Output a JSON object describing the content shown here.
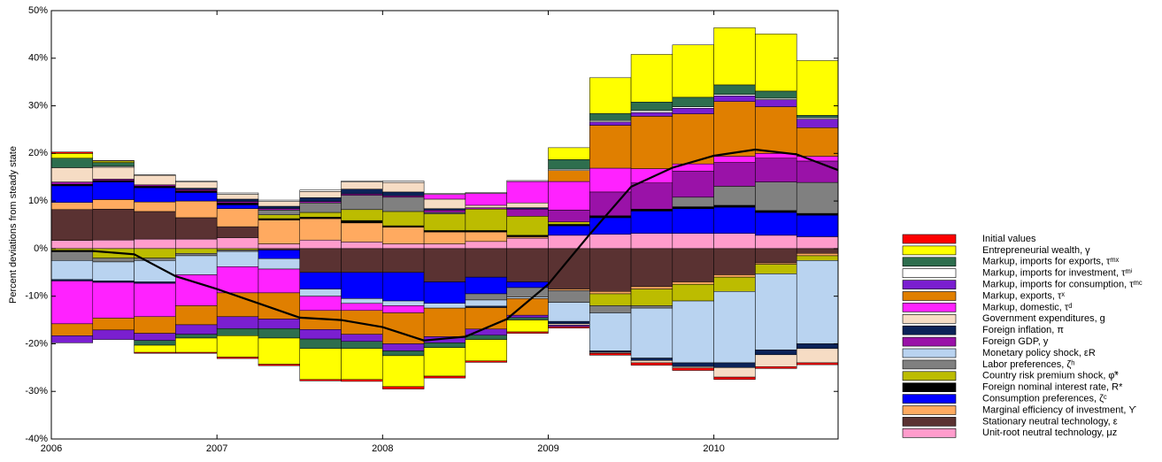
{
  "chart_data": {
    "type": "stacked_bar",
    "y_label": "Percent deviations from steady state",
    "x": [
      2006,
      2006.25,
      2006.5,
      2006.75,
      2007,
      2007.25,
      2007.5,
      2007.75,
      2008,
      2008.25,
      2008.5,
      2008.75,
      2009,
      2009.25,
      2009.5,
      2009.75,
      2010,
      2010.25,
      2010.5
    ],
    "xlim": [
      2006,
      2010.75
    ],
    "xticks": [
      2006,
      2007,
      2008,
      2009,
      2010
    ],
    "ylim": [
      -40,
      50
    ],
    "yticks": [
      {
        "value": -40,
        "label": "-40%"
      },
      {
        "value": -30,
        "label": "-30%"
      },
      {
        "value": -20,
        "label": "-20%"
      },
      {
        "value": -10,
        "label": "-10%"
      },
      {
        "value": 0,
        "label": "0%"
      },
      {
        "value": 10,
        "label": "10%"
      },
      {
        "value": 20,
        "label": "20%"
      },
      {
        "value": 30,
        "label": "30%"
      },
      {
        "value": 40,
        "label": "40%"
      },
      {
        "value": 50,
        "label": "50%"
      }
    ],
    "series": [
      {
        "name": "Initial values",
        "color": "#ff0000",
        "values": [
          0.3,
          0.1,
          -0.2,
          -0.2,
          -0.3,
          -0.3,
          -0.3,
          -0.4,
          -0.5,
          -0.4,
          -0.3,
          -0.3,
          -0.3,
          -0.4,
          -0.5,
          -0.5,
          -0.5,
          -0.4,
          -0.4
        ]
      },
      {
        "name": "Entrepreneurial wealth, γ",
        "color": "#ffff00",
        "values": [
          1,
          0.3,
          -1.5,
          -3,
          -4.5,
          -5.5,
          -6.5,
          -6.5,
          -6.5,
          -6,
          -4.5,
          -2.5,
          2.5,
          7.5,
          10,
          11,
          12,
          12,
          11.5
        ]
      },
      {
        "name": "Markup, imports for exports, τᵐˣ",
        "color": "#2e6e4e",
        "values": [
          2,
          0.8,
          -1,
          -0.8,
          -1.5,
          -2,
          -2,
          -1.5,
          -1,
          -1,
          -0.9,
          -0.5,
          2,
          1.5,
          1.8,
          2,
          2,
          1.5,
          0.5
        ]
      },
      {
        "name": "Markup, imports for investment, τᵐⁱ",
        "color": "#ffffff",
        "values": [
          0,
          0.2,
          0.1,
          0.2,
          0.3,
          0.3,
          0.3,
          0.2,
          0.3,
          0.2,
          0.2,
          0.2,
          0.3,
          0.3,
          0.4,
          0.3,
          0.3,
          0.3,
          0.3
        ]
      },
      {
        "name": "Markup, imports for consumption, τᵐᶜ",
        "color": "#7a1fd0",
        "values": [
          -1.5,
          -2,
          -1.5,
          -2,
          -2.5,
          -2,
          -2,
          -1.5,
          -1.5,
          -1.3,
          -1.3,
          -0.5,
          -0.3,
          0.7,
          0.8,
          1.2,
          1.2,
          1.5,
          1.8
        ]
      },
      {
        "name": "Markup, exports, τˣ",
        "color": "#e07f00",
        "values": [
          -2.5,
          -2.5,
          -3.5,
          -4,
          -5,
          -5.5,
          -4,
          -5,
          -6.5,
          -6,
          -4.5,
          -3.5,
          2.3,
          9,
          11,
          10.5,
          11.5,
          9.8,
          6
        ]
      },
      {
        "name": "Markup, domestic, τᵈ",
        "color": "#ff22ff",
        "values": [
          -9,
          -7.5,
          -7,
          -6.5,
          -5.5,
          -5,
          -3,
          -1.5,
          -1.5,
          1,
          2.5,
          4.5,
          6,
          5,
          3,
          1.5,
          1.3,
          1,
          1
        ]
      },
      {
        "name": "Government expenditures, g",
        "color": "#f6dcc4",
        "values": [
          3,
          2.5,
          2,
          1.3,
          1,
          1,
          1.3,
          1.5,
          2,
          2,
          0.5,
          1,
          -0.3,
          -0.2,
          -0.5,
          -0.3,
          -2,
          -2.5,
          -3
        ]
      },
      {
        "name": "Foreign inflation, π",
        "color": "#0c2358",
        "values": [
          -0.3,
          -0.3,
          -0.3,
          0.3,
          0.5,
          0.5,
          0.8,
          1,
          0.8,
          0.3,
          -0.3,
          0.3,
          -0.5,
          -0.3,
          -0.5,
          -0.8,
          -1,
          -1,
          -1
        ]
      },
      {
        "name": "Foreign GDP, y",
        "color": "#9a12a8",
        "values": [
          0.5,
          0.3,
          0.3,
          0.3,
          0.3,
          0.3,
          0.3,
          0.3,
          0.3,
          0.5,
          0.3,
          1.5,
          2.5,
          5,
          5.5,
          5.5,
          5,
          5,
          4.5
        ]
      },
      {
        "name": "Monetary policy shock, εR",
        "color": "#b9d3f0",
        "values": [
          -4,
          -4,
          -4.5,
          -4,
          -3.2,
          -2.2,
          -1.5,
          -1,
          -1,
          -1,
          -1.3,
          -0.3,
          -4,
          -8,
          -10.5,
          -13,
          -15,
          -16,
          -17.5
        ]
      },
      {
        "name": "Labor preferences, ζʰ",
        "color": "#808080",
        "values": [
          -2,
          -0.8,
          -0.5,
          -0.5,
          -0.3,
          1,
          2,
          3,
          3,
          0.3,
          -1.3,
          -2,
          -2.5,
          -1.5,
          -0.5,
          2,
          4,
          6,
          6.5
        ]
      },
      {
        "name": "Country risk premium shock, φ̃*",
        "color": "#bcbc00",
        "values": [
          -0.5,
          -2,
          -2,
          -1,
          -0.3,
          0.8,
          1,
          2.3,
          3,
          3.5,
          4.5,
          4,
          0.5,
          -2.5,
          -3.5,
          -3.5,
          -3,
          -2,
          -1
        ]
      },
      {
        "name": "Foreign nominal interest rate, R*",
        "color": "#000000",
        "values": [
          0.3,
          0.3,
          0.3,
          0.3,
          0.4,
          0.3,
          0.3,
          0.5,
          0.3,
          0.3,
          0.3,
          0.3,
          0.3,
          0.4,
          0.4,
          0.4,
          0.4,
          0.4,
          0.4
        ]
      },
      {
        "name": "Consumption preferences, ζᶜ",
        "color": "#0000ff",
        "values": [
          3.5,
          3.7,
          3,
          1.8,
          0.8,
          -1.8,
          -3.5,
          -5.5,
          -6,
          -4.5,
          -3.5,
          -1.2,
          2,
          3.5,
          4.7,
          5.2,
          5.5,
          4.8,
          4.5
        ]
      },
      {
        "name": "Marginal efficiency of investment, ϒ",
        "color": "#ffaa60",
        "values": [
          1.5,
          2,
          2,
          3.5,
          3.8,
          5,
          4.5,
          4,
          3.5,
          2.5,
          2,
          0.3,
          -0.3,
          -0.5,
          -0.5,
          -0.5,
          -0.5,
          -0.3,
          -0.5
        ]
      },
      {
        "name": "Stationary neutral technology, ε",
        "color": "#5a3232",
        "values": [
          6.5,
          6.5,
          5.8,
          4.5,
          2.3,
          -0.3,
          -5,
          -5,
          -5,
          -7,
          -6,
          -7,
          -8.5,
          -9,
          -8,
          -7,
          -5.5,
          -3,
          -1
        ]
      },
      {
        "name": "Unit-root neutral technology, μz",
        "color": "#ff9ccc",
        "values": [
          1.7,
          1.8,
          2,
          2,
          2.3,
          1,
          1.8,
          1.4,
          1,
          1,
          1.5,
          2.2,
          2.8,
          3,
          3.2,
          3.2,
          3.2,
          2.8,
          2.5
        ]
      }
    ],
    "line": {
      "color": "#000000",
      "x": [
        2006,
        2006.25,
        2006.5,
        2006.75,
        2007,
        2007.25,
        2007.5,
        2007.75,
        2008,
        2008.25,
        2008.5,
        2008.75,
        2009,
        2009.25,
        2009.5,
        2009.75,
        2010,
        2010.25,
        2010.5,
        2010.75
      ],
      "values": [
        -0.5,
        -0.5,
        -1.2,
        -5.8,
        -8.5,
        -11.5,
        -14.5,
        -15,
        -16.5,
        -19.3,
        -18.5,
        -14.8,
        -7.5,
        3,
        13,
        17,
        19.5,
        20.8,
        19.8,
        16.5
      ]
    }
  }
}
